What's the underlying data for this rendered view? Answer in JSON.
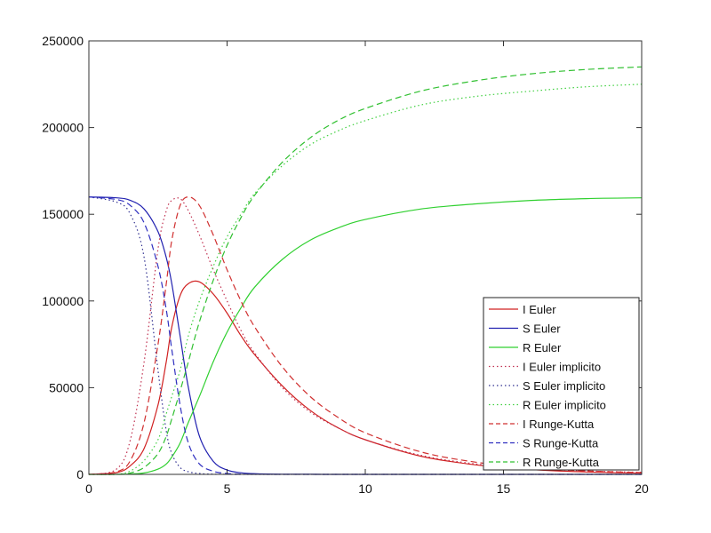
{
  "chart_data": {
    "type": "line",
    "title": "",
    "xlabel": "",
    "ylabel": "",
    "xlim": [
      0,
      20
    ],
    "ylim": [
      0,
      250000
    ],
    "grid": false,
    "x_ticks": [
      0,
      5,
      10,
      15,
      20
    ],
    "x_tick_labels": [
      "0",
      "5",
      "10",
      "15",
      "20"
    ],
    "y_ticks": [
      0,
      50000,
      100000,
      150000,
      200000,
      250000
    ],
    "y_tick_labels": [
      "0",
      "50000",
      "100000",
      "150000",
      "200000",
      "250000"
    ],
    "legend_position": "lower right",
    "x": [
      0,
      1,
      1.5,
      2,
      2.5,
      2.8,
      3,
      3.3,
      3.6,
      4,
      4.5,
      5,
      5.5,
      6,
      7,
      8,
      9,
      10,
      12,
      14,
      16,
      18,
      20
    ],
    "series": [
      {
        "name": "I Euler",
        "color": "#d02020",
        "style": "solid",
        "values": [
          0,
          1000,
          5000,
          15000,
          40000,
          65000,
          85000,
          103000,
          110000,
          111000,
          104000,
          93000,
          80000,
          69000,
          51000,
          37000,
          27000,
          20000,
          10500,
          5500,
          2800,
          1400,
          700
        ]
      },
      {
        "name": "S Euler",
        "color": "#2020b0",
        "style": "solid",
        "values": [
          160000,
          159500,
          158000,
          153000,
          140000,
          125000,
          110000,
          80000,
          50000,
          22000,
          7500,
          2500,
          900,
          400,
          100,
          30,
          10,
          0,
          0,
          0,
          0,
          0,
          0
        ]
      },
      {
        "name": "R Euler",
        "color": "#30d030",
        "style": "solid",
        "values": [
          0,
          0,
          200,
          800,
          3000,
          6000,
          10000,
          18000,
          30000,
          45000,
          65000,
          82000,
          96000,
          108000,
          124000,
          135000,
          142000,
          147000,
          153000,
          156000,
          158000,
          159000,
          159500
        ]
      },
      {
        "name": "I Euler implicito",
        "color": "#c03050",
        "style": "dotted",
        "values": [
          0,
          3000,
          20000,
          65000,
          130000,
          152000,
          158000,
          159000,
          152000,
          138000,
          118000,
          100000,
          83000,
          70000,
          50000,
          36000,
          27000,
          20000,
          11000,
          6000,
          3500,
          2000,
          1200
        ]
      },
      {
        "name": "S Euler implicito",
        "color": "#303090",
        "style": "dotted",
        "values": [
          160000,
          157000,
          150000,
          125000,
          60000,
          25000,
          12000,
          4000,
          1500,
          500,
          150,
          40,
          10,
          0,
          0,
          0,
          0,
          0,
          0,
          0,
          0,
          0,
          0
        ]
      },
      {
        "name": "R Euler implicito",
        "color": "#40d040",
        "style": "dotted",
        "values": [
          0,
          0,
          2000,
          8000,
          20000,
          35000,
          45000,
          60000,
          80000,
          100000,
          120000,
          137000,
          150000,
          162000,
          178000,
          190000,
          198000,
          204000,
          213000,
          218000,
          221000,
          223500,
          225000
        ]
      },
      {
        "name": "I Runge-Kutta",
        "color": "#d03030",
        "style": "dashed",
        "values": [
          0,
          1500,
          8000,
          30000,
          75000,
          110000,
          135000,
          155000,
          160000,
          155000,
          138000,
          118000,
          100000,
          85000,
          62000,
          45000,
          33000,
          24000,
          13000,
          7000,
          3800,
          2000,
          1000
        ]
      },
      {
        "name": "S Runge-Kutta",
        "color": "#3030c0",
        "style": "dashed",
        "values": [
          160000,
          158500,
          155000,
          145000,
          120000,
          95000,
          72000,
          40000,
          18000,
          6000,
          1800,
          500,
          150,
          50,
          10,
          0,
          0,
          0,
          0,
          0,
          0,
          0,
          0
        ]
      },
      {
        "name": "R Runge-Kutta",
        "color": "#30c030",
        "style": "dashed",
        "values": [
          0,
          0,
          800,
          4000,
          12000,
          22000,
          32000,
          48000,
          65000,
          88000,
          112000,
          132000,
          148000,
          161000,
          180000,
          194000,
          204000,
          211000,
          221000,
          227000,
          231000,
          233500,
          235000
        ]
      }
    ]
  },
  "legend": {
    "items": [
      {
        "label": "I Euler",
        "color": "#d02020",
        "style": "solid"
      },
      {
        "label": "S Euler",
        "color": "#2020b0",
        "style": "solid"
      },
      {
        "label": "R Euler",
        "color": "#30d030",
        "style": "solid"
      },
      {
        "label": "I Euler implicito",
        "color": "#c03050",
        "style": "dotted"
      },
      {
        "label": "S Euler implicito",
        "color": "#303090",
        "style": "dotted"
      },
      {
        "label": "R Euler implicito",
        "color": "#40d040",
        "style": "dotted"
      },
      {
        "label": "I Runge-Kutta",
        "color": "#d03030",
        "style": "dashed"
      },
      {
        "label": "S Runge-Kutta",
        "color": "#3030c0",
        "style": "dashed"
      },
      {
        "label": "R Runge-Kutta",
        "color": "#30c030",
        "style": "dashed"
      }
    ]
  }
}
